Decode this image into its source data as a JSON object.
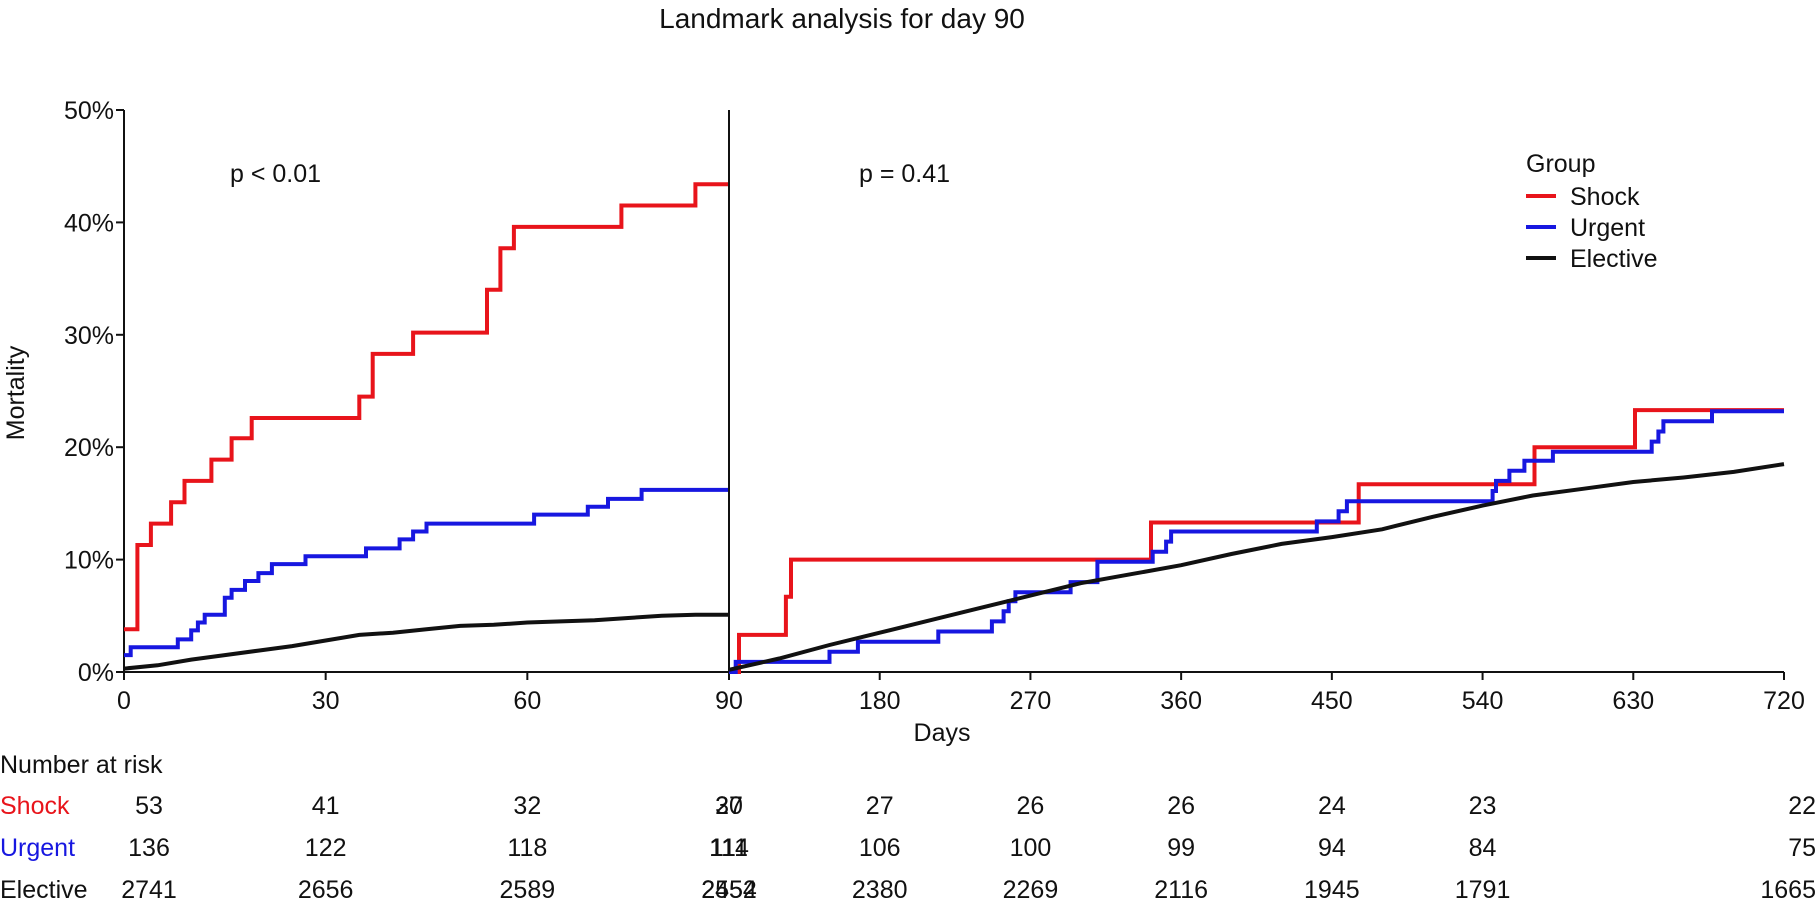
{
  "chart_data": {
    "type": "line",
    "title": "Landmark analysis for day 90",
    "xlabel": "Days",
    "ylabel": "Mortality",
    "ylim": [
      0,
      50
    ],
    "yticks": [
      "0%",
      "10%",
      "20%",
      "30%",
      "40%",
      "50%"
    ],
    "grid": false,
    "legend": {
      "title": "Group",
      "placement": "top-right",
      "entries": [
        "Shock",
        "Urgent",
        "Elective"
      ]
    },
    "panels": [
      {
        "xlim": [
          0,
          90
        ],
        "xticks": [
          "0",
          "30",
          "60",
          "90"
        ],
        "annotation": "p < 0.01",
        "series": [
          {
            "name": "Shock",
            "color": "#e8141b",
            "step": true,
            "points": [
              [
                0,
                3.8
              ],
              [
                2,
                11.3
              ],
              [
                4,
                13.2
              ],
              [
                7,
                15.1
              ],
              [
                9,
                17
              ],
              [
                13,
                18.9
              ],
              [
                16,
                20.8
              ],
              [
                19,
                22.6
              ],
              [
                35,
                24.5
              ],
              [
                37,
                28.3
              ],
              [
                43,
                30.2
              ],
              [
                54,
                34
              ],
              [
                56,
                37.7
              ],
              [
                58,
                39.6
              ],
              [
                74,
                41.5
              ],
              [
                85,
                43.4
              ],
              [
                90,
                43.4
              ]
            ]
          },
          {
            "name": "Urgent",
            "color": "#1717e0",
            "step": true,
            "points": [
              [
                0,
                1.5
              ],
              [
                1,
                2.2
              ],
              [
                8,
                2.9
              ],
              [
                10,
                3.7
              ],
              [
                11,
                4.4
              ],
              [
                12,
                5.1
              ],
              [
                15,
                6.6
              ],
              [
                16,
                7.3
              ],
              [
                18,
                8.1
              ],
              [
                20,
                8.8
              ],
              [
                22,
                9.6
              ],
              [
                27,
                10.3
              ],
              [
                36,
                11
              ],
              [
                41,
                11.8
              ],
              [
                43,
                12.5
              ],
              [
                45,
                13.2
              ],
              [
                61,
                14
              ],
              [
                69,
                14.7
              ],
              [
                72,
                15.4
              ],
              [
                77,
                16.2
              ],
              [
                90,
                16.2
              ]
            ]
          },
          {
            "name": "Elective",
            "color": "#111111",
            "step": false,
            "points": [
              [
                0,
                0.3
              ],
              [
                5,
                0.6
              ],
              [
                10,
                1.1
              ],
              [
                15,
                1.5
              ],
              [
                20,
                1.9
              ],
              [
                25,
                2.3
              ],
              [
                30,
                2.8
              ],
              [
                35,
                3.3
              ],
              [
                40,
                3.5
              ],
              [
                45,
                3.8
              ],
              [
                50,
                4.1
              ],
              [
                55,
                4.2
              ],
              [
                60,
                4.4
              ],
              [
                65,
                4.5
              ],
              [
                70,
                4.6
              ],
              [
                75,
                4.8
              ],
              [
                80,
                5.0
              ],
              [
                85,
                5.1
              ],
              [
                90,
                5.1
              ]
            ]
          }
        ]
      },
      {
        "xlim": [
          90,
          720
        ],
        "xticks": [
          "90",
          "180",
          "270",
          "360",
          "450",
          "540",
          "630",
          "720"
        ],
        "annotation": "p = 0.41",
        "series": [
          {
            "name": "Shock",
            "color": "#e8141b",
            "step": true,
            "points": [
              [
                90,
                0
              ],
              [
                96,
                3.3
              ],
              [
                124,
                6.7
              ],
              [
                127,
                10
              ],
              [
                342,
                13.3
              ],
              [
                466,
                16.7
              ],
              [
                571,
                20
              ],
              [
                631,
                23.3
              ],
              [
                720,
                23.3
              ]
            ]
          },
          {
            "name": "Urgent",
            "color": "#1717e0",
            "step": true,
            "points": [
              [
                90,
                0
              ],
              [
                94,
                0.9
              ],
              [
                150,
                1.8
              ],
              [
                167,
                2.7
              ],
              [
                215,
                3.6
              ],
              [
                247,
                4.5
              ],
              [
                254,
                5.4
              ],
              [
                257,
                6.3
              ],
              [
                261,
                7.1
              ],
              [
                294,
                8
              ],
              [
                310,
                9.8
              ],
              [
                343,
                10.7
              ],
              [
                351,
                11.6
              ],
              [
                354,
                12.5
              ],
              [
                441,
                13.4
              ],
              [
                454,
                14.3
              ],
              [
                459,
                15.2
              ],
              [
                546,
                16.1
              ],
              [
                548,
                17
              ],
              [
                556,
                17.9
              ],
              [
                565,
                18.8
              ],
              [
                582,
                19.6
              ],
              [
                641,
                20.5
              ],
              [
                645,
                21.4
              ],
              [
                648,
                22.3
              ],
              [
                677,
                23.2
              ],
              [
                720,
                23.2
              ]
            ]
          },
          {
            "name": "Elective",
            "color": "#111111",
            "step": false,
            "points": [
              [
                90,
                0.2
              ],
              [
                120,
                1.2
              ],
              [
                150,
                2.4
              ],
              [
                180,
                3.5
              ],
              [
                210,
                4.6
              ],
              [
                240,
                5.7
              ],
              [
                270,
                6.8
              ],
              [
                300,
                7.9
              ],
              [
                330,
                8.7
              ],
              [
                360,
                9.5
              ],
              [
                390,
                10.5
              ],
              [
                420,
                11.4
              ],
              [
                450,
                12.0
              ],
              [
                480,
                12.7
              ],
              [
                510,
                13.8
              ],
              [
                540,
                14.8
              ],
              [
                570,
                15.7
              ],
              [
                600,
                16.3
              ],
              [
                630,
                16.9
              ],
              [
                660,
                17.3
              ],
              [
                690,
                17.8
              ],
              [
                720,
                18.5
              ]
            ]
          }
        ]
      }
    ],
    "risk_table": {
      "title": "Number at risk",
      "rows": [
        {
          "name": "Shock",
          "color": "#e8141b",
          "values": [
            "53",
            "41",
            "32",
            "30",
            "27",
            "27",
            "26",
            "26",
            "24",
            "23",
            "22"
          ]
        },
        {
          "name": "Urgent",
          "color": "#1717e0",
          "values": [
            "136",
            "122",
            "118",
            "114",
            "111",
            "106",
            "100",
            "99",
            "94",
            "84",
            "75"
          ]
        },
        {
          "name": "Elective",
          "color": "#111111",
          "values": [
            "2741",
            "2656",
            "2589",
            "2554",
            "2452",
            "2380",
            "2269",
            "2116",
            "1945",
            "1791",
            "1665"
          ]
        }
      ]
    }
  }
}
